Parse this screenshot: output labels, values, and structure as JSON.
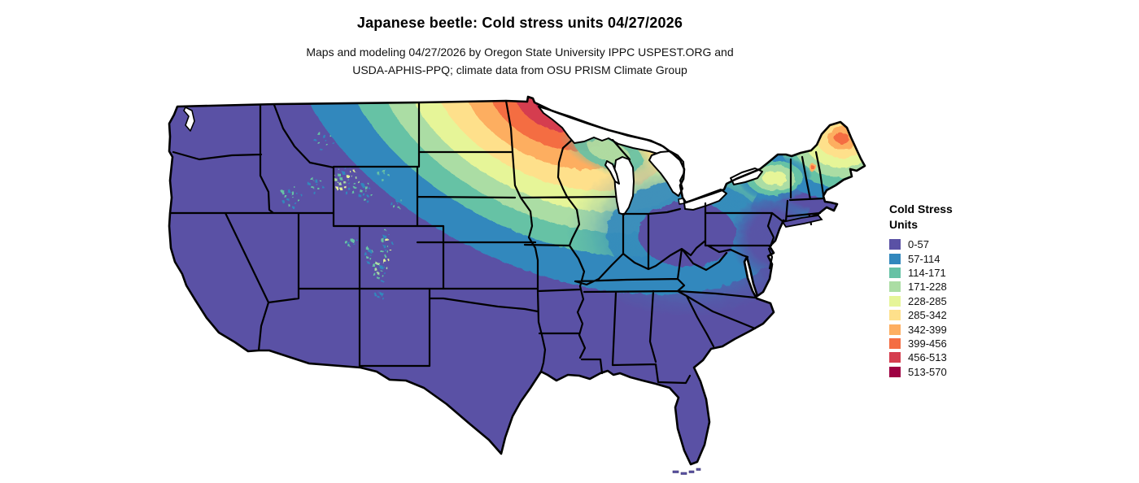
{
  "page": {
    "background": "#ffffff"
  },
  "header": {
    "title": "Japanese beetle: Cold stress units 04/27/2026",
    "subtitle_line1": "Maps and modeling 04/27/2026 by Oregon State University IPPC USPEST.ORG and",
    "subtitle_line2": "USDA-APHIS-PPQ; climate data from OSU PRISM Climate Group"
  },
  "legend": {
    "title_line1": "Cold Stress",
    "title_line2": "Units",
    "items": [
      {
        "label": "0-57",
        "color": "#5a51a5"
      },
      {
        "label": "57-114",
        "color": "#3288bd"
      },
      {
        "label": "114-171",
        "color": "#66c2a5"
      },
      {
        "label": "171-228",
        "color": "#abdda4"
      },
      {
        "label": "228-285",
        "color": "#e6f598"
      },
      {
        "label": "285-342",
        "color": "#fee08b"
      },
      {
        "label": "342-399",
        "color": "#fdae61"
      },
      {
        "label": "399-456",
        "color": "#f46d43"
      },
      {
        "label": "456-513",
        "color": "#d53e4f"
      },
      {
        "label": "513-570",
        "color": "#9e0142"
      }
    ]
  },
  "map": {
    "type": "choropleth-raster",
    "region": "Contiguous United States",
    "units": "Cold Stress Units",
    "date": "04/27/2026",
    "base_color": "#5a51a5",
    "state_border_color": "#000000",
    "water_color": "#ffffff",
    "hotspots": [
      {
        "area": "northern Minnesota / northeastern North Dakota",
        "range": "399-513"
      },
      {
        "area": "central Minnesota and eastern Dakotas",
        "range": "228-399"
      },
      {
        "area": "northern Wisconsin / upper Michigan",
        "range": "114-228"
      },
      {
        "area": "northern Maine",
        "range": "285-456"
      },
      {
        "area": "Adirondacks and northern New England",
        "range": "171-285"
      },
      {
        "area": "Rocky Mountains (ID / WY / CO), scattered",
        "range": "57-228"
      },
      {
        "area": "most of southern and western U.S.",
        "range": "0-57"
      }
    ]
  }
}
